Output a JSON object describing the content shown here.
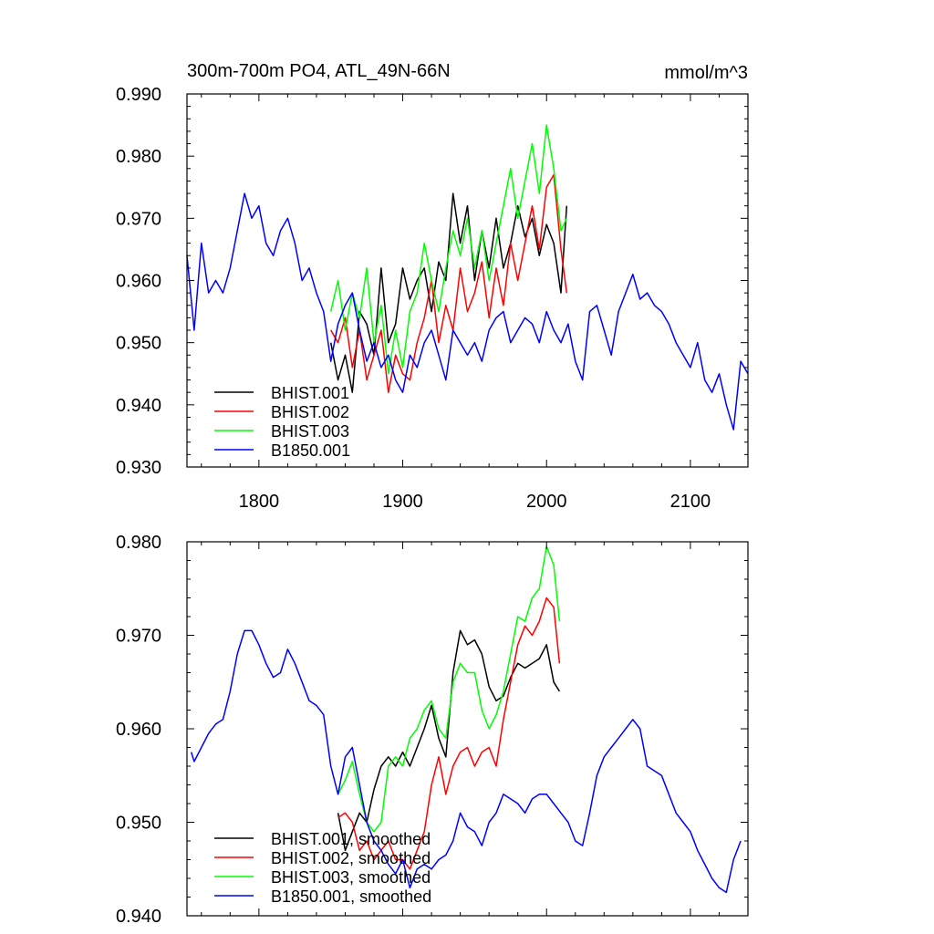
{
  "chart_data": [
    {
      "type": "line",
      "title": "300m-700m PO4, ATL_49N-66N",
      "units": "mmol/m^3",
      "xlim": [
        1750,
        2140
      ],
      "ylim": [
        0.93,
        0.99
      ],
      "x_ticks": [
        1800,
        1900,
        2000,
        2100
      ],
      "x_tick_labels": [
        "1800",
        "1900",
        "2000",
        "2100"
      ],
      "y_ticks": [
        0.93,
        0.94,
        0.95,
        0.96,
        0.97,
        0.98,
        0.99
      ],
      "y_tick_labels": [
        "0.930",
        "0.940",
        "0.950",
        "0.960",
        "0.970",
        "0.980",
        "0.990"
      ],
      "grid": false,
      "legend_position": "bottom-left",
      "series": [
        {
          "name": "BHIST.001",
          "color": "#000000",
          "x": [
            1850,
            1855,
            1860,
            1865,
            1870,
            1875,
            1880,
            1885,
            1890,
            1895,
            1900,
            1905,
            1910,
            1915,
            1920,
            1925,
            1930,
            1935,
            1940,
            1945,
            1950,
            1955,
            1960,
            1965,
            1970,
            1975,
            1980,
            1985,
            1990,
            1995,
            2000,
            2005,
            2010,
            2014
          ],
          "y": [
            0.95,
            0.944,
            0.948,
            0.942,
            0.955,
            0.953,
            0.948,
            0.962,
            0.95,
            0.953,
            0.962,
            0.957,
            0.96,
            0.962,
            0.955,
            0.963,
            0.96,
            0.974,
            0.966,
            0.972,
            0.96,
            0.968,
            0.962,
            0.97,
            0.962,
            0.966,
            0.972,
            0.967,
            0.97,
            0.964,
            0.969,
            0.966,
            0.958,
            0.972
          ]
        },
        {
          "name": "BHIST.002",
          "color": "#ff0000",
          "x": [
            1850,
            1855,
            1860,
            1865,
            1870,
            1875,
            1880,
            1885,
            1890,
            1895,
            1900,
            1905,
            1910,
            1915,
            1920,
            1925,
            1930,
            1935,
            1940,
            1945,
            1950,
            1955,
            1960,
            1965,
            1970,
            1975,
            1980,
            1985,
            1990,
            1995,
            2000,
            2005,
            2010,
            2014
          ],
          "y": [
            0.952,
            0.95,
            0.954,
            0.946,
            0.952,
            0.944,
            0.948,
            0.952,
            0.942,
            0.948,
            0.945,
            0.944,
            0.95,
            0.954,
            0.96,
            0.95,
            0.956,
            0.952,
            0.962,
            0.955,
            0.958,
            0.963,
            0.954,
            0.962,
            0.956,
            0.966,
            0.96,
            0.966,
            0.972,
            0.965,
            0.975,
            0.977,
            0.965,
            0.958
          ]
        },
        {
          "name": "BHIST.003",
          "color": "#00ff00",
          "x": [
            1850,
            1855,
            1860,
            1865,
            1870,
            1875,
            1880,
            1885,
            1890,
            1895,
            1900,
            1905,
            1910,
            1915,
            1920,
            1925,
            1930,
            1935,
            1940,
            1945,
            1950,
            1955,
            1960,
            1965,
            1970,
            1975,
            1980,
            1985,
            1990,
            1995,
            2000,
            2005,
            2010,
            2014
          ],
          "y": [
            0.955,
            0.96,
            0.952,
            0.958,
            0.954,
            0.962,
            0.95,
            0.956,
            0.945,
            0.952,
            0.946,
            0.955,
            0.958,
            0.966,
            0.96,
            0.955,
            0.962,
            0.968,
            0.964,
            0.97,
            0.962,
            0.968,
            0.96,
            0.966,
            0.972,
            0.978,
            0.97,
            0.976,
            0.982,
            0.974,
            0.985,
            0.978,
            0.968,
            0.97
          ]
        },
        {
          "name": "B1850.001",
          "color": "#0000ff",
          "x": [
            1750,
            1755,
            1760,
            1765,
            1770,
            1775,
            1780,
            1785,
            1790,
            1795,
            1800,
            1805,
            1810,
            1815,
            1820,
            1825,
            1830,
            1835,
            1840,
            1845,
            1850,
            1855,
            1860,
            1865,
            1870,
            1875,
            1880,
            1885,
            1890,
            1895,
            1900,
            1905,
            1910,
            1915,
            1920,
            1925,
            1930,
            1935,
            1940,
            1945,
            1950,
            1955,
            1960,
            1965,
            1970,
            1975,
            1980,
            1985,
            1990,
            1995,
            2000,
            2005,
            2010,
            2015,
            2020,
            2025,
            2030,
            2035,
            2040,
            2045,
            2050,
            2055,
            2060,
            2065,
            2070,
            2075,
            2080,
            2085,
            2090,
            2095,
            2100,
            2105,
            2110,
            2115,
            2120,
            2125,
            2130,
            2135,
            2140
          ],
          "y": [
            0.964,
            0.952,
            0.966,
            0.958,
            0.96,
            0.958,
            0.962,
            0.968,
            0.974,
            0.97,
            0.972,
            0.966,
            0.964,
            0.968,
            0.97,
            0.966,
            0.96,
            0.962,
            0.958,
            0.955,
            0.947,
            0.953,
            0.956,
            0.958,
            0.952,
            0.947,
            0.95,
            0.946,
            0.948,
            0.944,
            0.942,
            0.948,
            0.946,
            0.95,
            0.952,
            0.948,
            0.944,
            0.952,
            0.95,
            0.948,
            0.95,
            0.947,
            0.952,
            0.954,
            0.955,
            0.95,
            0.952,
            0.954,
            0.953,
            0.95,
            0.955,
            0.952,
            0.95,
            0.953,
            0.947,
            0.944,
            0.955,
            0.956,
            0.952,
            0.948,
            0.955,
            0.958,
            0.961,
            0.957,
            0.958,
            0.956,
            0.955,
            0.953,
            0.95,
            0.948,
            0.946,
            0.95,
            0.944,
            0.942,
            0.945,
            0.94,
            0.936,
            0.947,
            0.945
          ]
        }
      ]
    },
    {
      "type": "line",
      "title": "",
      "xlim": [
        1750,
        2140
      ],
      "ylim": [
        0.94,
        0.98
      ],
      "x_ticks": [
        1800,
        1900,
        2000,
        2100
      ],
      "y_ticks": [
        0.94,
        0.95,
        0.96,
        0.97,
        0.98
      ],
      "y_tick_labels": [
        "0.940",
        "0.950",
        "0.960",
        "0.970",
        "0.980"
      ],
      "grid": false,
      "legend_position": "bottom-left",
      "series": [
        {
          "name": "BHIST.001, smoothed",
          "color": "#000000",
          "x": [
            1855,
            1860,
            1865,
            1870,
            1875,
            1880,
            1885,
            1890,
            1895,
            1900,
            1905,
            1910,
            1915,
            1920,
            1925,
            1930,
            1935,
            1940,
            1945,
            1950,
            1955,
            1960,
            1965,
            1970,
            1975,
            1980,
            1985,
            1990,
            1995,
            2000,
            2005,
            2009
          ],
          "y": [
            0.951,
            0.947,
            0.949,
            0.951,
            0.95,
            0.9535,
            0.956,
            0.957,
            0.956,
            0.9575,
            0.956,
            0.958,
            0.96,
            0.9625,
            0.959,
            0.957,
            0.966,
            0.9705,
            0.969,
            0.9695,
            0.968,
            0.9645,
            0.963,
            0.9635,
            0.9655,
            0.967,
            0.9665,
            0.967,
            0.9675,
            0.969,
            0.965,
            0.964
          ]
        },
        {
          "name": "BHIST.002, smoothed",
          "color": "#ff0000",
          "x": [
            1855,
            1860,
            1865,
            1870,
            1875,
            1880,
            1885,
            1890,
            1895,
            1900,
            1905,
            1910,
            1915,
            1920,
            1925,
            1930,
            1935,
            1940,
            1945,
            1950,
            1955,
            1960,
            1965,
            1970,
            1975,
            1980,
            1985,
            1990,
            1995,
            2000,
            2005,
            2009
          ],
          "y": [
            0.9505,
            0.951,
            0.95,
            0.947,
            0.948,
            0.946,
            0.947,
            0.948,
            0.946,
            0.946,
            0.945,
            0.947,
            0.949,
            0.954,
            0.957,
            0.953,
            0.956,
            0.9575,
            0.958,
            0.956,
            0.9575,
            0.958,
            0.956,
            0.961,
            0.965,
            0.969,
            0.971,
            0.97,
            0.9715,
            0.974,
            0.973,
            0.967
          ]
        },
        {
          "name": "BHIST.003, smoothed",
          "color": "#00ff00",
          "x": [
            1855,
            1860,
            1865,
            1870,
            1875,
            1880,
            1885,
            1890,
            1895,
            1900,
            1905,
            1910,
            1915,
            1920,
            1925,
            1930,
            1935,
            1940,
            1945,
            1950,
            1955,
            1960,
            1965,
            1970,
            1975,
            1980,
            1985,
            1990,
            1995,
            2000,
            2005,
            2009
          ],
          "y": [
            0.953,
            0.9545,
            0.9565,
            0.953,
            0.95,
            0.949,
            0.95,
            0.956,
            0.957,
            0.956,
            0.959,
            0.96,
            0.962,
            0.963,
            0.96,
            0.959,
            0.965,
            0.967,
            0.966,
            0.966,
            0.962,
            0.96,
            0.9615,
            0.964,
            0.968,
            0.972,
            0.9715,
            0.974,
            0.975,
            0.9795,
            0.9775,
            0.9715
          ]
        },
        {
          "name": "B1850.001, smoothed",
          "color": "#0000ff",
          "x": [
            1753,
            1755,
            1760,
            1765,
            1770,
            1775,
            1780,
            1785,
            1790,
            1795,
            1800,
            1805,
            1810,
            1815,
            1820,
            1825,
            1830,
            1835,
            1840,
            1845,
            1850,
            1855,
            1860,
            1865,
            1870,
            1875,
            1880,
            1885,
            1890,
            1895,
            1900,
            1905,
            1910,
            1915,
            1920,
            1925,
            1930,
            1935,
            1940,
            1945,
            1950,
            1955,
            1960,
            1965,
            1970,
            1975,
            1980,
            1985,
            1990,
            1995,
            2000,
            2005,
            2010,
            2015,
            2020,
            2025,
            2030,
            2035,
            2040,
            2045,
            2050,
            2055,
            2060,
            2065,
            2070,
            2075,
            2080,
            2085,
            2090,
            2095,
            2100,
            2105,
            2110,
            2115,
            2120,
            2125,
            2130,
            2135
          ],
          "y": [
            0.9575,
            0.9565,
            0.958,
            0.9595,
            0.9605,
            0.961,
            0.964,
            0.968,
            0.9705,
            0.9705,
            0.969,
            0.967,
            0.9655,
            0.966,
            0.9685,
            0.967,
            0.965,
            0.963,
            0.9625,
            0.9615,
            0.956,
            0.953,
            0.957,
            0.958,
            0.954,
            0.95,
            0.948,
            0.947,
            0.9455,
            0.9445,
            0.946,
            0.943,
            0.945,
            0.9455,
            0.945,
            0.946,
            0.9465,
            0.948,
            0.951,
            0.9495,
            0.949,
            0.9475,
            0.95,
            0.951,
            0.953,
            0.9525,
            0.952,
            0.951,
            0.9525,
            0.953,
            0.953,
            0.952,
            0.951,
            0.95,
            0.948,
            0.9475,
            0.951,
            0.955,
            0.957,
            0.958,
            0.959,
            0.96,
            0.961,
            0.96,
            0.956,
            0.9555,
            0.955,
            0.953,
            0.951,
            0.95,
            0.949,
            0.947,
            0.9455,
            0.944,
            0.943,
            0.9425,
            0.946,
            0.948
          ]
        }
      ]
    }
  ]
}
